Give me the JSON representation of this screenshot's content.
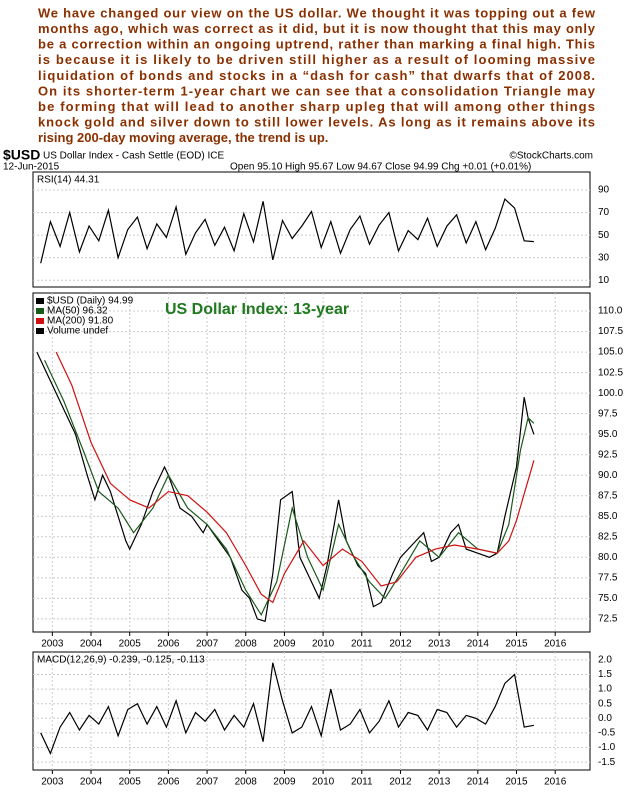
{
  "commentary": [
    "We have changed our view on the US dollar. We thought it was topping out a few",
    "months ago, which was correct as it did, but it is now thought that this may only",
    "be a correction within an ongoing uptrend, rather than marking a final high. This",
    "is because it is likely to be driven still higher as a result of looming massive",
    "liquidation of bonds and stocks in a “dash for cash” that dwarfs that of 2008.",
    "On its shorter-term 1-year chart we can see that a consolidation Triangle may",
    "be forming that will lead to another sharp upleg that will among other things",
    "knock gold and silver down to still lower levels. As long as it remains above its",
    "rising 200-day moving average, the trend is up."
  ],
  "header": {
    "symbol": "$USD",
    "name": "US Dollar Index - Cash Settle (EOD) ICE",
    "source": "©StockCharts.com",
    "date": "12-Jun-2015",
    "quote": "Open 95.10 High 95.67 Low 94.67 Close 94.99 Chg +0.01 (+0.01%)"
  },
  "chart_data": [
    {
      "type": "line",
      "label": "RSI(14) 44.31",
      "xlim": [
        2002.5,
        2016.9
      ],
      "ylim": [
        4,
        106
      ],
      "yticks": [
        10,
        30,
        50,
        70,
        90
      ],
      "grid": true,
      "x": [
        2002.7,
        2002.95,
        2003.2,
        2003.45,
        2003.7,
        2003.95,
        2004.2,
        2004.45,
        2004.7,
        2004.95,
        2005.2,
        2005.45,
        2005.7,
        2005.95,
        2006.2,
        2006.45,
        2006.7,
        2006.95,
        2007.2,
        2007.45,
        2007.7,
        2007.95,
        2008.2,
        2008.45,
        2008.7,
        2008.95,
        2009.2,
        2009.45,
        2009.7,
        2009.95,
        2010.2,
        2010.45,
        2010.7,
        2010.95,
        2011.2,
        2011.45,
        2011.7,
        2011.95,
        2012.2,
        2012.45,
        2012.7,
        2012.95,
        2013.2,
        2013.45,
        2013.7,
        2013.95,
        2014.2,
        2014.45,
        2014.7,
        2014.95,
        2015.2,
        2015.45
      ],
      "series": [
        {
          "color": "#000000",
          "values": [
            25,
            62,
            40,
            70,
            35,
            58,
            45,
            72,
            30,
            55,
            66,
            38,
            60,
            48,
            75,
            33,
            52,
            64,
            41,
            57,
            36,
            69,
            44,
            80,
            28,
            63,
            47,
            58,
            71,
            39,
            62,
            34,
            55,
            67,
            42,
            59,
            70,
            36,
            54,
            46,
            65,
            40,
            58,
            68,
            43,
            62,
            37,
            56,
            82,
            74,
            45,
            44.31
          ]
        }
      ]
    },
    {
      "type": "line",
      "annotation": "US Dollar Index: 13-year",
      "xlim": [
        2002.5,
        2016.9
      ],
      "ylim": [
        70.9,
        112.2
      ],
      "xticks": [
        2003,
        2004,
        2005,
        2006,
        2007,
        2008,
        2009,
        2010,
        2011,
        2012,
        2013,
        2014,
        2015,
        2016
      ],
      "yticks": [
        {
          "value": 72.5,
          "label": "72.5"
        },
        {
          "value": 75,
          "label": "75.0"
        },
        {
          "value": 77.5,
          "label": "77.5"
        },
        {
          "value": 80,
          "label": "80.0"
        },
        {
          "value": 82.5,
          "label": "82.5"
        },
        {
          "value": 85,
          "label": "85.0"
        },
        {
          "value": 87.5,
          "label": "87.5"
        },
        {
          "value": 90,
          "label": "90.0"
        },
        {
          "value": 92.5,
          "label": "92.5"
        },
        {
          "value": 95,
          "label": "95.0"
        },
        {
          "value": 97.5,
          "label": "97.5"
        },
        {
          "value": 100,
          "label": "100.0"
        },
        {
          "value": 102.5,
          "label": "102.5"
        },
        {
          "value": 105,
          "label": "105.0"
        },
        {
          "value": 107.5,
          "label": "107.5"
        },
        {
          "value": 110,
          "label": "110.0"
        }
      ],
      "grid": true,
      "legend_extra": "Volume undef",
      "series": [
        {
          "name": "$USD (Daily) 94.99",
          "color": "#000000",
          "x": [
            2002.6,
            2003.0,
            2003.3,
            2003.6,
            2003.9,
            2004.1,
            2004.3,
            2004.5,
            2004.9,
            2005.0,
            2005.3,
            2005.6,
            2005.9,
            2006.0,
            2006.3,
            2006.6,
            2006.9,
            2007.0,
            2007.3,
            2007.6,
            2007.9,
            2008.1,
            2008.3,
            2008.5,
            2008.7,
            2008.9,
            2009.2,
            2009.4,
            2009.7,
            2009.9,
            2010.1,
            2010.4,
            2010.6,
            2010.9,
            2011.1,
            2011.3,
            2011.5,
            2011.8,
            2012.0,
            2012.4,
            2012.6,
            2012.8,
            2013.0,
            2013.3,
            2013.5,
            2013.7,
            2014.0,
            2014.3,
            2014.5,
            2014.7,
            2014.9,
            2015.0,
            2015.2,
            2015.3,
            2015.45
          ],
          "values": [
            105,
            101,
            98,
            95,
            90,
            87,
            90,
            88,
            82,
            81,
            84,
            88,
            91,
            90,
            86,
            85,
            83,
            84,
            82,
            80,
            76,
            75,
            72.5,
            72.2,
            78,
            87,
            88,
            80,
            77,
            75,
            79,
            87,
            82,
            79,
            78,
            74,
            74.5,
            78,
            80,
            82,
            83,
            79.5,
            80,
            83,
            84,
            81,
            80.5,
            80,
            80.5,
            85,
            89,
            91,
            99.5,
            97,
            94.99
          ]
        },
        {
          "name": "MA(50) 96.32",
          "color": "#1a5a1a",
          "x": [
            2002.8,
            2003.3,
            2003.8,
            2004.2,
            2004.7,
            2005.1,
            2005.6,
            2006.0,
            2006.5,
            2007.0,
            2007.5,
            2008.0,
            2008.4,
            2008.8,
            2009.2,
            2009.6,
            2010.0,
            2010.4,
            2010.8,
            2011.2,
            2011.6,
            2012.0,
            2012.5,
            2013.0,
            2013.5,
            2014.0,
            2014.5,
            2014.8,
            2015.1,
            2015.3,
            2015.45
          ],
          "values": [
            104,
            99,
            93,
            88,
            86,
            83,
            86,
            90,
            86,
            84,
            81,
            76,
            73,
            77,
            86,
            80,
            76,
            84,
            80,
            77,
            75,
            78,
            82,
            80,
            83,
            81,
            80.5,
            84,
            93,
            97,
            96.32
          ]
        },
        {
          "name": "MA(200) 91.80",
          "color": "#d01010",
          "x": [
            2003.1,
            2003.5,
            2004.0,
            2004.5,
            2005.0,
            2005.5,
            2006.0,
            2006.5,
            2007.0,
            2007.5,
            2008.0,
            2008.4,
            2008.7,
            2009.0,
            2009.5,
            2010.0,
            2010.5,
            2011.0,
            2011.5,
            2011.9,
            2012.4,
            2012.9,
            2013.4,
            2014.0,
            2014.5,
            2014.8,
            2015.0,
            2015.45
          ],
          "values": [
            105,
            101,
            94,
            89,
            87,
            86,
            88,
            87.5,
            85.5,
            83,
            79,
            75.5,
            74.5,
            78,
            82,
            79,
            81,
            79.5,
            76.5,
            77,
            80,
            81,
            81.5,
            81,
            80.5,
            82,
            84.5,
            91.8
          ]
        }
      ]
    },
    {
      "type": "line",
      "label": "MACD(12,26,9) -0.239, -0.125, -0.113",
      "xlim": [
        2002.5,
        2016.9
      ],
      "ylim": [
        -1.77,
        2.27
      ],
      "xticks": [
        2003,
        2004,
        2005,
        2006,
        2007,
        2008,
        2009,
        2010,
        2011,
        2012,
        2013,
        2014,
        2015,
        2016
      ],
      "yticks": [
        {
          "value": -1.5,
          "label": "-1.5"
        },
        {
          "value": -1,
          "label": "-1.0"
        },
        {
          "value": -0.5,
          "label": "-0.5"
        },
        {
          "value": 0,
          "label": "0.0"
        },
        {
          "value": 0.5,
          "label": "0.5"
        },
        {
          "value": 1,
          "label": "1.0"
        },
        {
          "value": 1.5,
          "label": "1.5"
        },
        {
          "value": 2,
          "label": "2.0"
        }
      ],
      "grid": true,
      "x": [
        2002.7,
        2002.95,
        2003.2,
        2003.45,
        2003.7,
        2003.95,
        2004.2,
        2004.45,
        2004.7,
        2004.95,
        2005.2,
        2005.45,
        2005.7,
        2005.95,
        2006.2,
        2006.45,
        2006.7,
        2006.95,
        2007.2,
        2007.45,
        2007.7,
        2007.95,
        2008.2,
        2008.45,
        2008.7,
        2008.95,
        2009.2,
        2009.45,
        2009.7,
        2009.95,
        2010.2,
        2010.45,
        2010.7,
        2010.95,
        2011.2,
        2011.45,
        2011.7,
        2011.95,
        2012.2,
        2012.45,
        2012.7,
        2012.95,
        2013.2,
        2013.45,
        2013.7,
        2013.95,
        2014.2,
        2014.45,
        2014.7,
        2014.95,
        2015.2,
        2015.45
      ],
      "series": [
        {
          "color": "#000000",
          "values": [
            -0.5,
            -1.2,
            -0.3,
            0.2,
            -0.4,
            0.1,
            -0.2,
            0.4,
            -0.6,
            0.3,
            0.5,
            -0.2,
            0.4,
            -0.3,
            0.6,
            -0.5,
            0.2,
            -0.1,
            0.3,
            -0.4,
            0.1,
            -0.3,
            0.5,
            -0.8,
            1.9,
            0.6,
            -0.5,
            -0.3,
            0.4,
            -0.6,
            1.0,
            -0.4,
            -0.2,
            0.3,
            -0.5,
            -0.1,
            0.6,
            -0.3,
            0.2,
            0.1,
            -0.4,
            0.3,
            0.2,
            -0.3,
            0.1,
            0.0,
            -0.2,
            0.4,
            1.2,
            1.5,
            -0.3,
            -0.239
          ]
        }
      ]
    }
  ]
}
